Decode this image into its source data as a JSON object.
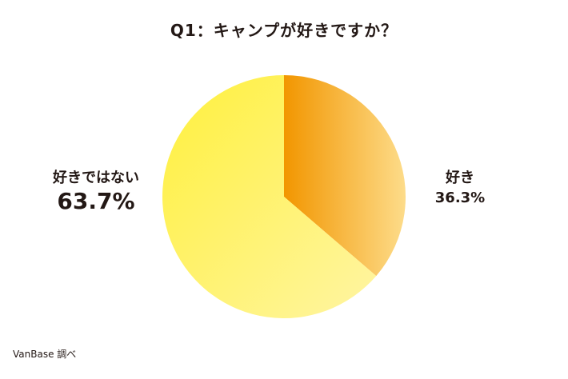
{
  "chart_data": {
    "type": "pie",
    "title": "Q1：キャンプが好きですか？",
    "slices": [
      {
        "label": "好き",
        "value": 36.3,
        "value_label": "36.3%",
        "color_start": "#f29600",
        "color_end": "#fddc8a"
      },
      {
        "label": "好きではない",
        "value": 63.7,
        "value_label": "63.7%",
        "color_start": "#fff03c",
        "color_end": "#fff5a3"
      }
    ],
    "start_angle": "top, clockwise",
    "legend": "none"
  },
  "source": "VanBase 調べ"
}
